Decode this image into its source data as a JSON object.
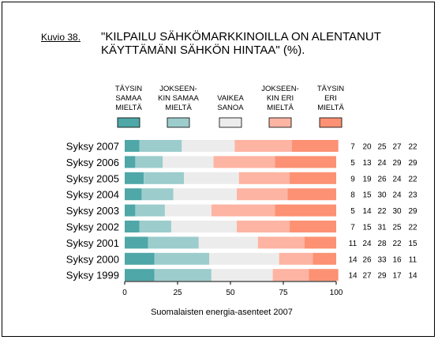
{
  "figure_label": "Kuvio 38.",
  "chart_data": {
    "type": "bar",
    "orientation": "horizontal",
    "stacked": true,
    "title": "\"KILPAILU SÄHKÖMARKKINOILLA ON ALENTANUT\nKÄYTTÄMÄNI SÄHKÖN HINTAA\" (%).",
    "source": "Suomalaisten energia-asenteet 2007",
    "categories": [
      "Syksy 2007",
      "Syksy 2006",
      "Syksy 2005",
      "Syksy 2004",
      "Syksy 2003",
      "Syksy 2002",
      "Syksy 2001",
      "Syksy 2000",
      "Syksy 1999"
    ],
    "series": [
      {
        "name": "TÄYSIN SAMAA MIELTÄ",
        "legend_lines": [
          "TÄYSIN",
          "SAMAA",
          "MIELTÄ"
        ],
        "color": "#4fa7a7",
        "values": [
          7,
          5,
          9,
          8,
          5,
          7,
          11,
          14,
          14
        ]
      },
      {
        "name": "JOKSEEN-KIN SAMAA MIELTÄ",
        "legend_lines": [
          "JOKSEEN-",
          "KIN SAMAA",
          "MIELTÄ"
        ],
        "color": "#9ccccc",
        "values": [
          20,
          13,
          19,
          15,
          14,
          15,
          24,
          26,
          27
        ]
      },
      {
        "name": "VAIKEA SANOA",
        "legend_lines": [
          "VAIKEA",
          "SANOA"
        ],
        "color": "#ececec",
        "values": [
          25,
          24,
          26,
          30,
          22,
          31,
          28,
          33,
          29
        ]
      },
      {
        "name": "JOKSEEN-KIN ERI MIELTÄ",
        "legend_lines": [
          "JOKSEEN-",
          "KIN ERI",
          "MIELTÄ"
        ],
        "color": "#fdb4a2",
        "values": [
          27,
          29,
          24,
          24,
          30,
          25,
          22,
          16,
          17
        ]
      },
      {
        "name": "TÄYSIN ERI MIELTÄ",
        "legend_lines": [
          "TÄYSIN",
          "ERI",
          "MIELTÄ"
        ],
        "color": "#fc9173",
        "values": [
          22,
          29,
          22,
          23,
          29,
          22,
          15,
          11,
          14
        ]
      }
    ],
    "xlim": [
      0,
      100
    ],
    "xticks": [
      0,
      25,
      50,
      75,
      100
    ],
    "legend_position": "top",
    "grid": false
  }
}
